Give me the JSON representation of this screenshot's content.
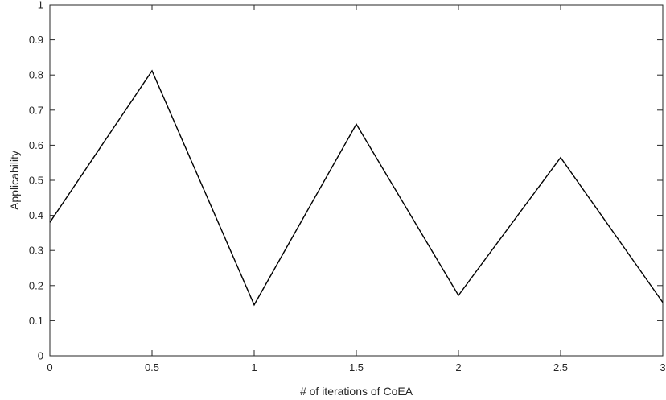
{
  "chart_data": {
    "type": "line",
    "title": "",
    "xlabel": "# of iterations of CoEA",
    "ylabel": "Applicability",
    "xlim": [
      0,
      3
    ],
    "ylim": [
      0,
      1
    ],
    "xticks": [
      0,
      0.5,
      1,
      1.5,
      2,
      2.5,
      3
    ],
    "yticks": [
      0,
      0.1,
      0.2,
      0.3,
      0.4,
      0.5,
      0.6,
      0.7,
      0.8,
      0.9,
      1
    ],
    "xtick_labels": [
      "0",
      "0.5",
      "1",
      "1.5",
      "2",
      "2.5",
      "3"
    ],
    "ytick_labels": [
      "0",
      "0.1",
      "0.2",
      "0.3",
      "0.4",
      "0.5",
      "0.6",
      "0.7",
      "0.8",
      "0.9",
      "1"
    ],
    "grid": false,
    "series": [
      {
        "x": [
          0,
          0.5,
          1,
          1.5,
          2,
          2.5,
          3
        ],
        "y": [
          0.38,
          0.812,
          0.145,
          0.66,
          0.172,
          0.565,
          0.152
        ],
        "color": "#000000"
      }
    ]
  }
}
